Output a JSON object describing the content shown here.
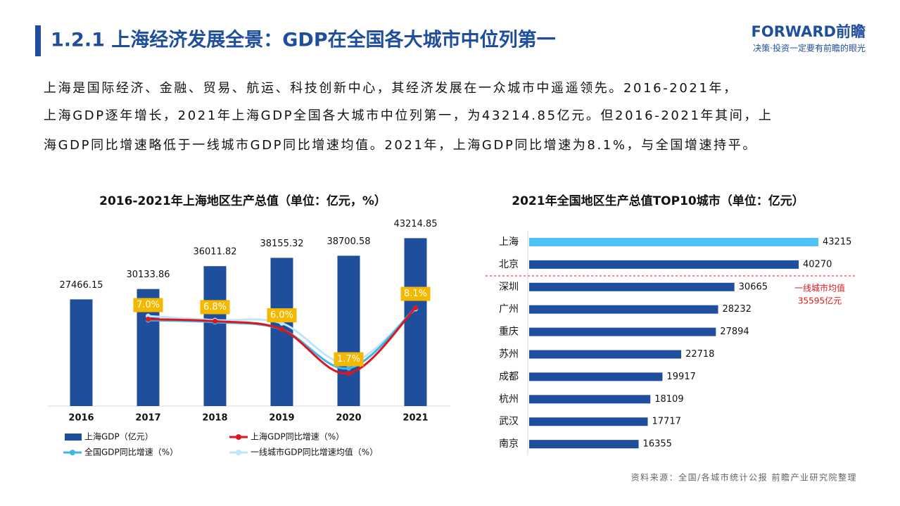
{
  "header": {
    "title": "1.2.1 上海经济发展全景：GDP在全国各大城市中位列第一",
    "logo": "FORWARD前瞻",
    "slogan": "决策·投资一定要有前瞻的眼光"
  },
  "body": {
    "lines": [
      "上海是国际经济、金融、贸易、航运、科技创新中心，其经济发展在一众城市中遥遥领先。2016-2021年，",
      "上海GDP逐年增长，2021年上海GDP全国各大城市中位列第一，为43214.85亿元。但2016-2021年其间，上",
      "海GDP同比增速略低于一线城市GDP同比增速均值。2021年，上海GDP同比增速为8.1%，与全国增速持平。"
    ]
  },
  "chart_data": [
    {
      "type": "bar",
      "title": "2016-2021年上海地区生产总值（单位：亿元，%）",
      "categories": [
        "2016",
        "2017",
        "2018",
        "2019",
        "2020",
        "2021"
      ],
      "series": [
        {
          "name": "上海GDP（亿元）",
          "type": "bar",
          "color": "#1f4e9c",
          "values": [
            27466.15,
            30133.86,
            36011.82,
            38155.32,
            38700.58,
            43214.85
          ]
        },
        {
          "name": "上海GDP同比增速（%）",
          "type": "line",
          "axis": "y2",
          "color": "#e0161b",
          "values": [
            null,
            7.0,
            6.8,
            6.0,
            1.7,
            8.1
          ],
          "value_labels": [
            null,
            "7.0%",
            "6.8%",
            "6.0%",
            "1.7%",
            "8.1%"
          ]
        },
        {
          "name": "全国GDP同比增速（%）",
          "type": "line",
          "axis": "y2",
          "color": "#3cb6ec",
          "values": [
            null,
            6.9,
            6.7,
            6.0,
            2.2,
            8.1
          ]
        },
        {
          "name": "一线城市GDP同比增速均值（%）",
          "type": "line",
          "axis": "y2",
          "color": "#bfe6f7",
          "values": [
            null,
            7.3,
            6.9,
            6.6,
            2.7,
            8.0
          ]
        }
      ],
      "ylim": [
        0,
        50000
      ],
      "y2lim": [
        -1.5,
        17.5
      ],
      "label_color": "#f5b800"
    },
    {
      "type": "barh",
      "title": "2021年全国地区生产总值TOP10城市（单位：亿元）",
      "categories": [
        "上海",
        "北京",
        "深圳",
        "广州",
        "重庆",
        "苏州",
        "成都",
        "杭州",
        "武汉",
        "南京"
      ],
      "values": [
        43215,
        40270,
        30665,
        28232,
        27894,
        22718,
        19917,
        18109,
        17717,
        16355
      ],
      "colors": [
        "#4fc3f7",
        "#1f4e9c",
        "#1f4e9c",
        "#1f4e9c",
        "#1f4e9c",
        "#1f4e9c",
        "#1f4e9c",
        "#1f4e9c",
        "#1f4e9c",
        "#1f4e9c"
      ],
      "xlim": [
        0,
        45000
      ],
      "annotation": {
        "lines": [
          "一线城市均值",
          "35595亿元"
        ],
        "color": "#e0161b"
      }
    }
  ],
  "source": "资料来源：全国/各城市统计公报 前瞻产业研究院整理"
}
